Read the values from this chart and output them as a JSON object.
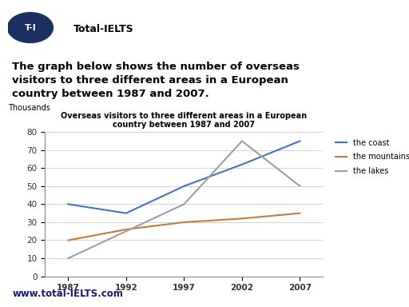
{
  "title_line1": "Overseas visitors to three different areas in a European",
  "title_line2": "country between 1987 and 2007",
  "ylabel": "Thousands",
  "years": [
    1987,
    1992,
    1997,
    2002,
    2007
  ],
  "coast": [
    40,
    35,
    50,
    62,
    75
  ],
  "mountains": [
    20,
    26,
    30,
    32,
    35
  ],
  "lakes": [
    10,
    25,
    40,
    75,
    50
  ],
  "coast_color": "#4472C4",
  "mountains_color": "#C87941",
  "lakes_color": "#9E9E9E",
  "ylim": [
    0,
    80
  ],
  "yticks": [
    0,
    10,
    20,
    30,
    40,
    50,
    60,
    70,
    80
  ],
  "xticks": [
    1987,
    1992,
    1997,
    2002,
    2007
  ],
  "legend_labels": [
    "the coast",
    "the mountains",
    "the lakes"
  ],
  "bg_color": "#ffffff",
  "logo_bg": "#1a3060",
  "logo_text": "T-I",
  "brand_text": "Total-IELTS",
  "header_line1": "The graph below shows the number of overseas",
  "header_line2": "visitors to three different areas in a European",
  "header_line3": "country between 1987 and 2007.",
  "footer_text": "www.total-IELTS.com"
}
